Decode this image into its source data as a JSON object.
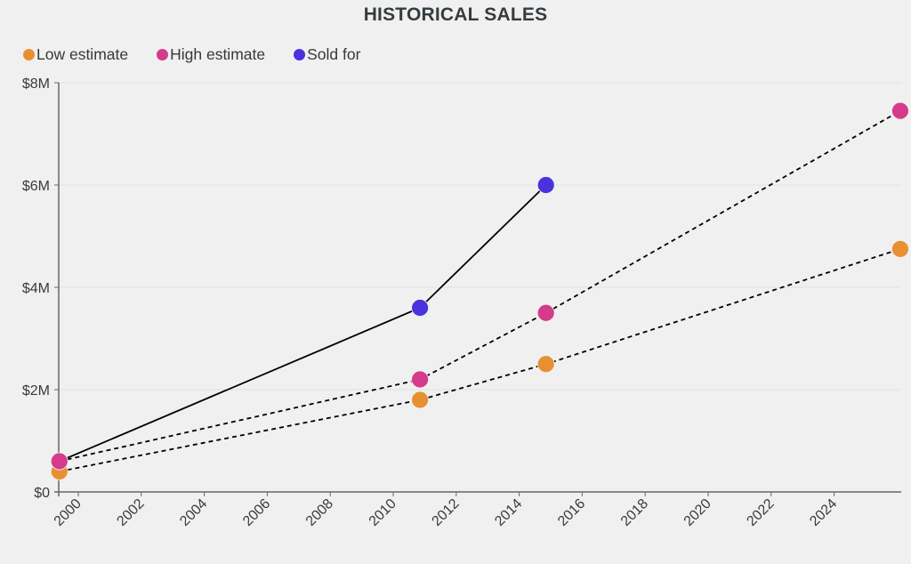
{
  "chart_data": {
    "type": "line",
    "title": "HISTORICAL SALES",
    "xlabel": "",
    "ylabel": "",
    "xlim": [
      1999.4,
      2026.2
    ],
    "ylim": [
      0,
      8
    ],
    "x_ticks": [
      "2000",
      "2002",
      "2004",
      "2006",
      "2008",
      "2010",
      "2012",
      "2014",
      "2016",
      "2018",
      "2020",
      "2022",
      "2024"
    ],
    "y_ticks": [
      {
        "value": 0,
        "label": "$0"
      },
      {
        "value": 2,
        "label": "$2M"
      },
      {
        "value": 4,
        "label": "$4M"
      },
      {
        "value": 6,
        "label": "$6M"
      },
      {
        "value": 8,
        "label": "$8M"
      }
    ],
    "grid": "horizontal",
    "legend_position": "top-left",
    "series": [
      {
        "name": "Low estimate",
        "color": "#e88f32",
        "line": "dashed",
        "points": [
          [
            1999.4,
            0.4
          ],
          [
            2010.85,
            1.8
          ],
          [
            2014.85,
            2.5
          ],
          [
            2026.1,
            4.75
          ]
        ]
      },
      {
        "name": "High estimate",
        "color": "#d63a8a",
        "line": "dashed",
        "points": [
          [
            1999.4,
            0.6
          ],
          [
            2010.85,
            2.2
          ],
          [
            2014.85,
            3.5
          ],
          [
            2026.1,
            7.45
          ]
        ]
      },
      {
        "name": "Sold for",
        "color": "#4a32de",
        "line": "solid",
        "points": [
          [
            1999.4,
            0.6
          ],
          [
            2010.85,
            3.6
          ],
          [
            2014.85,
            6.0
          ]
        ]
      }
    ]
  }
}
